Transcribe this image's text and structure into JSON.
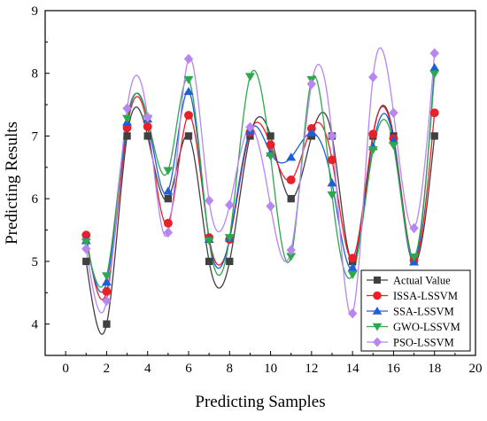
{
  "chart_data": {
    "type": "line",
    "xlabel": "Predicting Samples",
    "ylabel": "Predicting Results",
    "xlim": [
      -1,
      20
    ],
    "ylim": [
      3.5,
      9
    ],
    "xticks": [
      0,
      2,
      4,
      6,
      8,
      10,
      12,
      14,
      16,
      18,
      20
    ],
    "yticks": [
      4,
      5,
      6,
      7,
      8,
      9
    ],
    "grid": false,
    "legend_position": "bottom-right",
    "x": [
      1,
      2,
      3,
      4,
      5,
      6,
      7,
      8,
      9,
      10,
      11,
      12,
      13,
      14,
      15,
      16,
      17,
      18
    ],
    "series": [
      {
        "name": "Actual Value",
        "color": "#404040",
        "marker": "square",
        "values": [
          5.0,
          4.0,
          7.0,
          7.0,
          6.0,
          7.0,
          5.0,
          5.0,
          7.0,
          7.0,
          6.0,
          7.0,
          7.0,
          5.0,
          7.0,
          7.0,
          5.0,
          7.0
        ]
      },
      {
        "name": "ISSA-LSSVM",
        "color": "#e8202a",
        "marker": "circle",
        "values": [
          5.42,
          4.52,
          7.13,
          7.15,
          5.61,
          7.33,
          5.38,
          5.35,
          7.06,
          6.86,
          6.3,
          7.12,
          6.62,
          5.05,
          7.03,
          6.96,
          5.02,
          7.37
        ]
      },
      {
        "name": "SSA-LSSVM",
        "color": "#1f5fd6",
        "marker": "triangle-up",
        "values": [
          5.33,
          4.67,
          7.22,
          7.27,
          6.12,
          7.71,
          5.35,
          5.37,
          7.08,
          6.73,
          6.66,
          7.05,
          6.25,
          4.9,
          6.83,
          6.93,
          4.99,
          8.09
        ]
      },
      {
        "name": "GWO-LSSVM",
        "color": "#2ea84d",
        "marker": "triangle-down",
        "values": [
          5.31,
          4.77,
          7.28,
          7.28,
          6.45,
          7.9,
          5.33,
          5.38,
          7.95,
          6.68,
          5.08,
          7.9,
          6.06,
          4.79,
          6.78,
          6.85,
          5.07,
          7.99
        ]
      },
      {
        "name": "PSO-LSSVM",
        "color": "#b886f0",
        "marker": "diamond",
        "values": [
          5.2,
          4.37,
          7.44,
          7.3,
          5.46,
          8.23,
          5.97,
          5.9,
          7.14,
          5.88,
          5.18,
          7.83,
          7.0,
          4.17,
          7.94,
          7.37,
          5.53,
          8.32
        ]
      }
    ]
  }
}
